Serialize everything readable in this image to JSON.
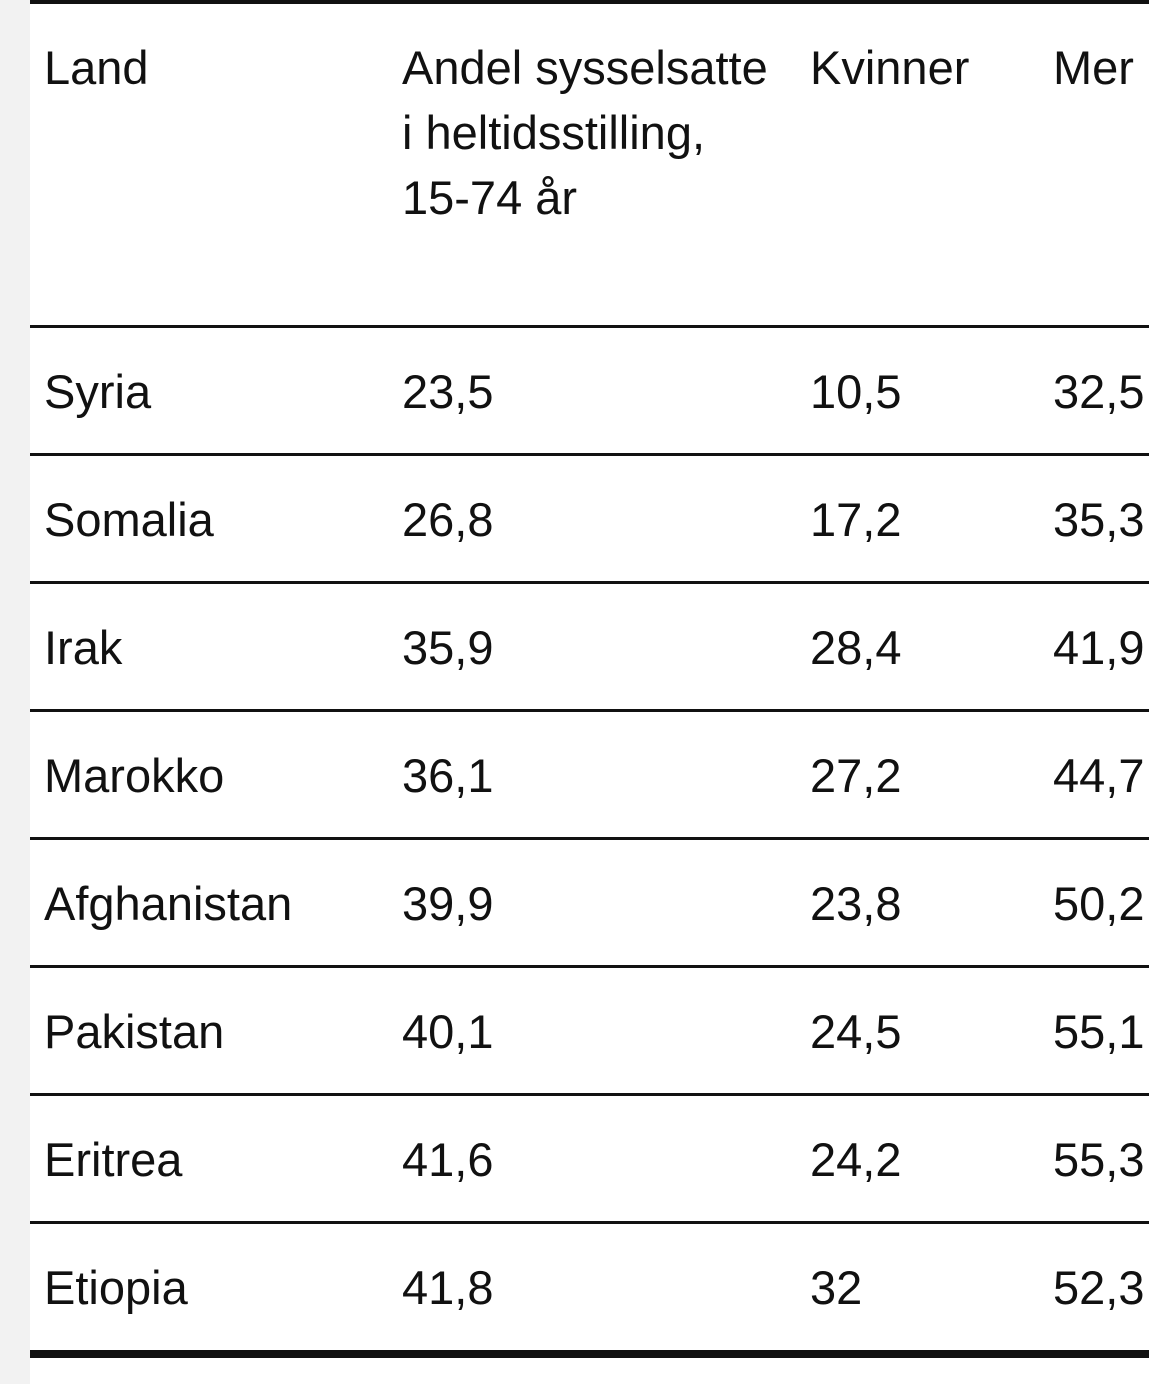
{
  "table": {
    "headers": [
      "Land",
      "Andel sysselsatte i heltidsstilling, 15-74 år",
      "Kvinner",
      "Mer"
    ],
    "rows": [
      [
        "Syria",
        "23,5",
        "10,5",
        "32,5"
      ],
      [
        "Somalia",
        "26,8",
        "17,2",
        "35,3"
      ],
      [
        "Irak",
        "35,9",
        "28,4",
        "41,9"
      ],
      [
        "Marokko",
        "36,1",
        "27,2",
        "44,7"
      ],
      [
        "Afghanistan",
        "39,9",
        "23,8",
        "50,2"
      ],
      [
        "Pakistan",
        "40,1",
        "24,5",
        "55,1"
      ],
      [
        "Eritrea",
        "41,6",
        "24,2",
        "55,3"
      ],
      [
        "Etiopia",
        "41,8",
        "32",
        "52,3"
      ]
    ]
  }
}
